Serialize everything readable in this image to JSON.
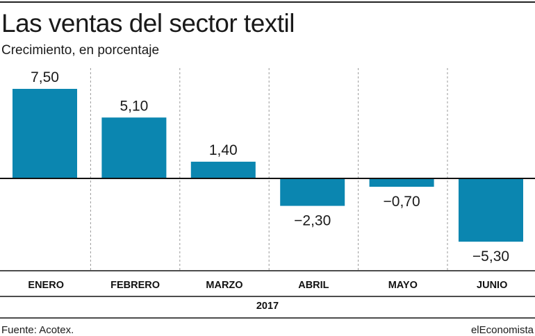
{
  "header": {
    "title": "Las ventas del sector textil",
    "subtitle": "Crecimiento, en porcentaje"
  },
  "footer": {
    "source": "Fuente: Acotex.",
    "brand": "elEconomista"
  },
  "colors": {
    "bar": "#0b86b0",
    "axis": "#111111",
    "grid": "#9a9a9a"
  },
  "chart_data": {
    "type": "bar",
    "title": "Las ventas del sector textil",
    "subtitle": "Crecimiento, en porcentaje",
    "categories": [
      "ENERO",
      "FEBRERO",
      "MARZO",
      "ABRIL",
      "MAYO",
      "JUNIO"
    ],
    "values": [
      7.5,
      5.1,
      1.4,
      -2.3,
      -0.7,
      -5.3
    ],
    "value_labels": [
      "7,50",
      "5,10",
      "1,40",
      "−2,30",
      "−0,70",
      "−5,30"
    ],
    "group_label": "2017",
    "ylim": [
      -7.8,
      9.8
    ],
    "grid": "vertical dashed separators"
  }
}
